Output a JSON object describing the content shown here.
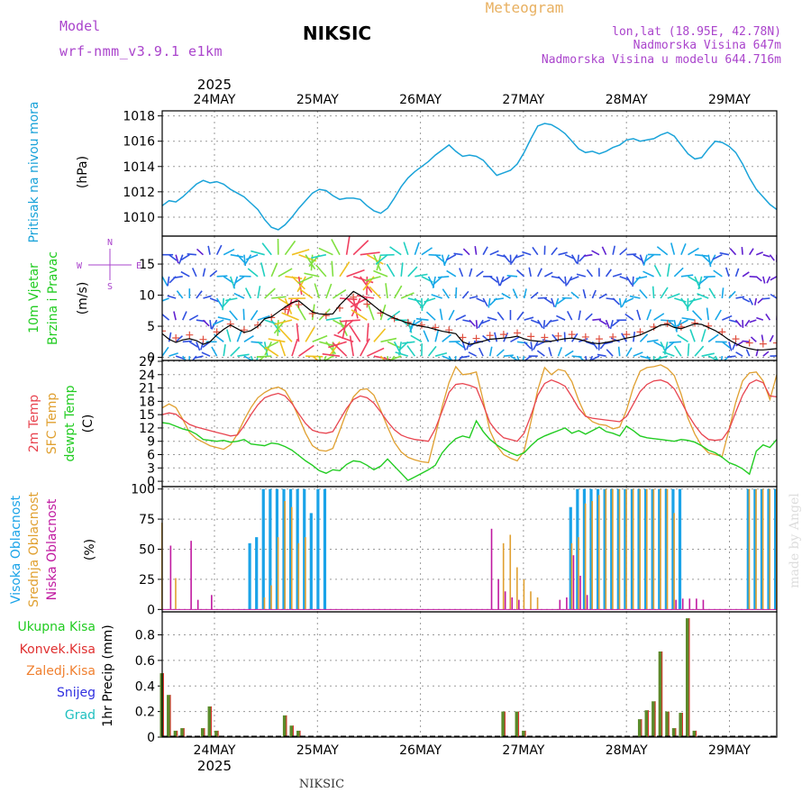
{
  "header": {
    "model_label": "Model",
    "model_name": "wrf-nmm_v3.9.1 e1km",
    "location": "NIKSIC",
    "product": "Meteogram",
    "coords": "lon,lat (18.95E, 42.78N)",
    "elevation": "Nadmorska Visina 647m",
    "model_elevation": "Nadmorska Visina u modelu 644.716m"
  },
  "footer": {
    "location": "NIKSIC",
    "credit": "made by Angel"
  },
  "colors": {
    "pressure": "#1aa3d9",
    "temp2m": "#e8444f",
    "sfc_temp": "#e0a030",
    "dewpt": "#22cc22",
    "high_cloud": "#1aa3e8",
    "mid_cloud": "#e0a030",
    "low_cloud": "#c01aa0",
    "total_precip": "#5a8a2a",
    "conv_precip": "#e03030",
    "frozen": "#f08030",
    "snow": "#3030e0",
    "grad": "#20c0c0",
    "label_purple": "#aa44cc",
    "label_orange": "#e8b060"
  },
  "chart_data": [
    {
      "type": "line",
      "x_axis_top": {
        "year": "2025",
        "ticks": [
          "24MAY",
          "25MAY",
          "26MAY",
          "27MAY",
          "28MAY",
          "29MAY"
        ]
      },
      "ylabel": "Pritisak na nivou mora",
      "unit": "(hPa)",
      "ylim": [
        1008.5,
        1018.4
      ],
      "yticks": [
        "1010",
        "1012",
        "1014",
        "1016",
        "1018"
      ],
      "series": [
        {
          "values": [
            1010.9,
            1011.3,
            1011.2,
            1011.6,
            1012.1,
            1012.6,
            1012.9,
            1012.7,
            1012.8,
            1012.6,
            1012.2,
            1011.9,
            1011.6,
            1011.1,
            1010.6,
            1009.8,
            1009.2,
            1009.0,
            1009.4,
            1010.0,
            1010.7,
            1011.3,
            1011.9,
            1012.2,
            1012.1,
            1011.7,
            1011.4,
            1011.5,
            1011.5,
            1011.4,
            1010.9,
            1010.5,
            1010.3,
            1010.7,
            1011.5,
            1012.4,
            1013.1,
            1013.6,
            1014.0,
            1014.4,
            1014.9,
            1015.3,
            1015.7,
            1015.2,
            1014.8,
            1014.9,
            1014.8,
            1014.5,
            1013.9,
            1013.3,
            1013.5,
            1013.7,
            1014.2,
            1015.1,
            1016.2,
            1017.2,
            1017.4,
            1017.3,
            1017.0,
            1016.6,
            1016.0,
            1015.4,
            1015.1,
            1015.2,
            1015.0,
            1015.2,
            1015.5,
            1015.7,
            1016.1,
            1016.2,
            1016.0,
            1016.1,
            1016.2,
            1016.5,
            1016.7,
            1016.4,
            1015.7,
            1015.0,
            1014.6,
            1014.7,
            1015.4,
            1016.0,
            1015.9,
            1015.6,
            1015.1,
            1014.2,
            1013.1,
            1012.2,
            1011.6,
            1011.0,
            1010.6
          ]
        }
      ]
    },
    {
      "type": "line",
      "ylabel": "10m Vjetar",
      "ylabel2": "Brzina i Pravac",
      "unit": "(m/s)",
      "ylim": [
        -0.5,
        19.5
      ],
      "yticks": [
        "0",
        "5",
        "10",
        "15"
      ],
      "legend": {
        "north": "N",
        "south": "S",
        "east": "E",
        "west": "W"
      },
      "series": [
        {
          "values": [
            3.8,
            2.9,
            2.4,
            2.8,
            3.0,
            2.7,
            2.1,
            2.5,
            3.6,
            4.5,
            5.2,
            4.6,
            4.0,
            4.3,
            5.0,
            6.2,
            6.5,
            7.3,
            8.1,
            8.8,
            9.1,
            8.2,
            7.3,
            7.0,
            6.9,
            7.0,
            8.4,
            9.5,
            10.6,
            10.0,
            9.2,
            8.3,
            7.4,
            6.8,
            6.3,
            5.9,
            5.5,
            5.2,
            5.0,
            4.8,
            4.5,
            4.2,
            4.0,
            3.8,
            2.5,
            2.1,
            2.3,
            2.6,
            2.9,
            3.0,
            3.1,
            3.2,
            3.4,
            3.0,
            2.7,
            2.6,
            2.5,
            2.6,
            2.8,
            3.0,
            3.1,
            2.9,
            2.6,
            2.3,
            2.2,
            2.4,
            2.6,
            2.8,
            3.1,
            3.3,
            3.6,
            4.1,
            4.6,
            5.2,
            5.3,
            4.8,
            4.6,
            5.0,
            5.4,
            5.3,
            4.8,
            4.3,
            3.6,
            2.8,
            2.2,
            1.7,
            1.4,
            1.2,
            1.2,
            1.3,
            1.4
          ]
        }
      ]
    },
    {
      "type": "line",
      "ylabels": [
        "2m Temp",
        "SFC Temp",
        "dewpt Temp"
      ],
      "unit": "(C)",
      "ylim": [
        -1.2,
        27.2
      ],
      "yticks": [
        "0",
        "3",
        "6",
        "9",
        "12",
        "15",
        "18",
        "21",
        "24",
        "27"
      ],
      "series": [
        {
          "name": "2m Temp",
          "values": [
            15.0,
            15.4,
            15.1,
            13.9,
            12.8,
            12.2,
            11.8,
            11.4,
            11.0,
            10.6,
            10.2,
            10.4,
            12.5,
            15.0,
            17.2,
            18.8,
            19.4,
            19.8,
            19.2,
            17.5,
            15.2,
            13.0,
            11.5,
            11.0,
            10.8,
            11.2,
            13.8,
            16.4,
            18.4,
            19.2,
            18.8,
            17.6,
            15.6,
            13.4,
            11.6,
            10.4,
            9.8,
            9.4,
            9.2,
            9.0,
            11.8,
            15.8,
            20.0,
            21.8,
            22.0,
            21.6,
            21.0,
            17.2,
            13.2,
            11.2,
            9.8,
            9.4,
            9.0,
            10.8,
            14.8,
            19.4,
            22.0,
            22.8,
            22.2,
            21.4,
            19.0,
            16.4,
            14.6,
            14.2,
            14.0,
            13.8,
            13.6,
            13.4,
            14.6,
            17.4,
            20.2,
            21.8,
            22.6,
            22.8,
            22.2,
            20.8,
            18.0,
            15.0,
            12.6,
            10.6,
            9.4,
            9.2,
            9.4,
            11.6,
            15.6,
            19.4,
            22.0,
            22.8,
            22.2,
            19.2,
            19.0
          ]
        },
        {
          "name": "SFC Temp",
          "values": [
            16.5,
            17.4,
            16.6,
            14.0,
            11.0,
            9.6,
            8.8,
            8.0,
            7.6,
            7.2,
            8.2,
            10.6,
            13.8,
            16.6,
            18.8,
            20.0,
            20.8,
            21.2,
            20.4,
            17.8,
            14.4,
            10.8,
            8.0,
            7.0,
            6.8,
            7.4,
            11.4,
            15.6,
            19.0,
            20.6,
            20.8,
            19.4,
            16.0,
            12.2,
            8.8,
            6.6,
            5.4,
            4.8,
            4.4,
            4.2,
            10.2,
            16.8,
            22.2,
            25.8,
            24.0,
            24.2,
            24.6,
            18.2,
            11.4,
            8.0,
            6.0,
            5.2,
            4.6,
            6.8,
            13.4,
            20.6,
            25.6,
            24.0,
            25.2,
            24.8,
            22.4,
            18.2,
            14.8,
            13.4,
            12.8,
            12.6,
            11.8,
            12.2,
            16.0,
            21.2,
            24.8,
            25.6,
            25.8,
            26.2,
            25.4,
            23.8,
            19.6,
            14.2,
            10.6,
            8.0,
            6.4,
            6.0,
            5.6,
            11.6,
            17.8,
            22.6,
            24.4,
            24.6,
            22.6,
            18.4,
            24.0
          ]
        },
        {
          "name": "dewpt Temp",
          "values": [
            13.2,
            13.0,
            12.4,
            11.8,
            11.4,
            10.6,
            9.4,
            9.2,
            9.0,
            9.2,
            8.8,
            9.0,
            9.4,
            8.4,
            8.2,
            8.0,
            8.6,
            8.4,
            7.8,
            7.0,
            5.8,
            4.6,
            3.6,
            2.4,
            1.8,
            2.6,
            2.4,
            3.8,
            4.6,
            4.4,
            3.6,
            2.6,
            3.4,
            5.0,
            3.4,
            1.8,
            0.2,
            1.0,
            1.8,
            2.6,
            3.6,
            6.4,
            8.2,
            9.6,
            10.2,
            9.8,
            13.6,
            11.2,
            9.4,
            8.2,
            7.2,
            6.4,
            5.8,
            6.4,
            8.0,
            9.4,
            10.2,
            10.8,
            11.4,
            12.0,
            10.8,
            11.4,
            10.6,
            11.4,
            12.2,
            11.2,
            10.8,
            10.2,
            12.4,
            11.4,
            10.2,
            9.8,
            9.6,
            9.4,
            9.2,
            9.0,
            9.4,
            9.2,
            8.8,
            8.0,
            7.0,
            6.4,
            5.4,
            4.2,
            3.6,
            2.8,
            1.6,
            6.8,
            8.2,
            7.6,
            9.4
          ]
        }
      ]
    },
    {
      "type": "bar",
      "ylabels": [
        "Visoka Oblacnost",
        "Srednja Oblacnost",
        "Niska Oblacnost"
      ],
      "unit": "(%)",
      "ylim": [
        -2,
        102
      ],
      "yticks": [
        "0",
        "25",
        "50",
        "75",
        "100"
      ],
      "series": [
        {
          "name": "Visoka Oblacnost",
          "values": [
            0,
            0,
            0,
            0,
            0,
            0,
            0,
            0,
            0,
            0,
            0,
            0,
            0,
            55,
            60,
            100,
            100,
            100,
            100,
            100,
            100,
            100,
            80,
            100,
            100,
            0,
            0,
            0,
            0,
            0,
            0,
            0,
            0,
            0,
            0,
            0,
            0,
            0,
            0,
            0,
            0,
            0,
            0,
            0,
            0,
            0,
            0,
            0,
            0,
            0,
            0,
            0,
            0,
            0,
            0,
            0,
            0,
            0,
            0,
            0,
            85,
            100,
            100,
            100,
            100,
            100,
            100,
            100,
            100,
            100,
            100,
            100,
            100,
            100,
            100,
            100,
            100,
            0,
            0,
            0,
            0,
            0,
            0,
            0,
            0,
            0,
            100,
            100,
            100,
            100,
            100
          ]
        },
        {
          "name": "Srednja Oblacnost",
          "values": [
            72,
            0,
            26,
            0,
            0,
            0,
            0,
            0,
            0,
            0,
            0,
            0,
            0,
            0,
            0,
            10,
            20,
            60,
            90,
            85,
            55,
            60,
            0,
            0,
            0,
            0,
            0,
            0,
            0,
            0,
            0,
            0,
            0,
            0,
            0,
            0,
            0,
            0,
            0,
            0,
            0,
            0,
            0,
            0,
            0,
            0,
            0,
            0,
            0,
            0,
            55,
            62,
            35,
            25,
            15,
            10,
            0,
            0,
            0,
            0,
            55,
            60,
            88,
            90,
            95,
            100,
            100,
            100,
            100,
            100,
            100,
            100,
            100,
            100,
            100,
            80,
            0,
            0,
            0,
            0,
            0,
            0,
            0,
            0,
            0,
            0,
            100,
            100,
            100,
            100,
            100
          ]
        },
        {
          "name": "Niska Oblacnost",
          "values": [
            0,
            53,
            0,
            0,
            57,
            8,
            0,
            12,
            0,
            0,
            0,
            0,
            0,
            0,
            0,
            0,
            0,
            0,
            0,
            0,
            0,
            0,
            0,
            0,
            0,
            0,
            0,
            0,
            0,
            0,
            0,
            0,
            0,
            0,
            0,
            0,
            0,
            0,
            0,
            0,
            0,
            0,
            0,
            0,
            0,
            0,
            0,
            0,
            67,
            25,
            15,
            10,
            8,
            0,
            0,
            0,
            0,
            0,
            8,
            10,
            45,
            28,
            12,
            0,
            0,
            0,
            0,
            0,
            0,
            0,
            0,
            0,
            0,
            0,
            0,
            8,
            9,
            9,
            9,
            8,
            0,
            0,
            0,
            0,
            0,
            0,
            0,
            0,
            0,
            0,
            0
          ]
        }
      ]
    },
    {
      "type": "bar",
      "ylabels": [
        "Ukupna Kisa",
        "Konvek.Kisa",
        "Zaledj.Kisa",
        "Snijeg",
        "Grad"
      ],
      "ylabel_axis": "1hr Precip (mm)",
      "ylim": [
        0,
        0.98
      ],
      "yticks": [
        "0",
        "0.2",
        "0.4",
        "0.6",
        "0.8"
      ],
      "x_axis_bottom": {
        "year": "2025",
        "ticks": [
          "24MAY",
          "25MAY",
          "26MAY",
          "27MAY",
          "28MAY",
          "29MAY"
        ]
      },
      "series": [
        {
          "name": "Ukupna Kisa",
          "values": [
            0.5,
            0.33,
            0.05,
            0.07,
            0,
            0,
            0.07,
            0.24,
            0.05,
            0,
            0,
            0,
            0,
            0,
            0,
            0,
            0,
            0,
            0.17,
            0.09,
            0.05,
            0,
            0,
            0,
            0,
            0,
            0,
            0,
            0,
            0,
            0,
            0,
            0,
            0,
            0,
            0,
            0,
            0,
            0,
            0,
            0,
            0,
            0,
            0,
            0,
            0,
            0,
            0,
            0,
            0,
            0.2,
            0,
            0.2,
            0.05,
            0,
            0,
            0,
            0,
            0,
            0,
            0,
            0,
            0,
            0,
            0,
            0,
            0,
            0,
            0,
            0,
            0.14,
            0.21,
            0.28,
            0.67,
            0.2,
            0.07,
            0.19,
            0.93,
            0.05,
            0,
            0,
            0,
            0,
            0,
            0,
            0,
            0,
            0,
            0,
            0,
            0
          ]
        }
      ]
    }
  ]
}
